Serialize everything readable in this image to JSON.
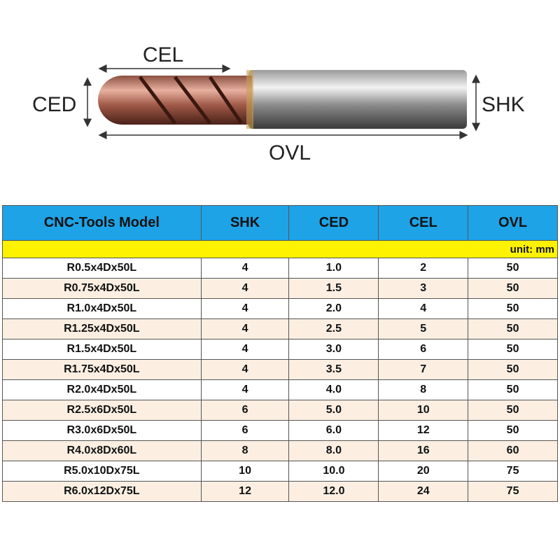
{
  "diagram": {
    "labels": {
      "cel": "CEL",
      "ced": "CED",
      "shk": "SHK",
      "ovl": "OVL"
    }
  },
  "table": {
    "header": [
      "CNC-Tools Model",
      "SHK",
      "CED",
      "CEL",
      "OVL"
    ],
    "unit": "unit: mm",
    "rows": [
      [
        "R0.5x4Dx50L",
        "4",
        "1.0",
        "2",
        "50"
      ],
      [
        "R0.75x4Dx50L",
        "4",
        "1.5",
        "3",
        "50"
      ],
      [
        "R1.0x4Dx50L",
        "4",
        "2.0",
        "4",
        "50"
      ],
      [
        "R1.25x4Dx50L",
        "4",
        "2.5",
        "5",
        "50"
      ],
      [
        "R1.5x4Dx50L",
        "4",
        "3.0",
        "6",
        "50"
      ],
      [
        "R1.75x4Dx50L",
        "4",
        "3.5",
        "7",
        "50"
      ],
      [
        "R2.0x4Dx50L",
        "4",
        "4.0",
        "8",
        "50"
      ],
      [
        "R2.5x6Dx50L",
        "6",
        "5.0",
        "10",
        "50"
      ],
      [
        "R3.0x6Dx50L",
        "6",
        "6.0",
        "12",
        "50"
      ],
      [
        "R4.0x8Dx60L",
        "8",
        "8.0",
        "16",
        "60"
      ],
      [
        "R5.0x10Dx75L",
        "10",
        "10.0",
        "20",
        "75"
      ],
      [
        "R6.0x12Dx75L",
        "12",
        "12.0",
        "24",
        "75"
      ]
    ]
  }
}
